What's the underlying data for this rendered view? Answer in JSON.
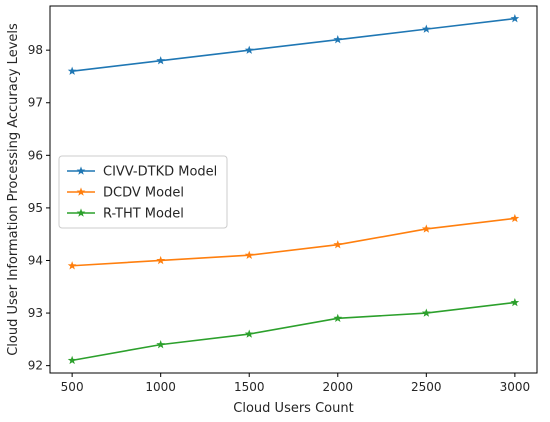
{
  "chart_data": {
    "type": "line",
    "xlabel": "Cloud Users Count",
    "ylabel": "Cloud User Information Processing Accuracy Levels",
    "x": [
      500,
      1000,
      1500,
      2000,
      2500,
      3000
    ],
    "xticks": [
      "500",
      "1000",
      "1500",
      "2000",
      "2500",
      "3000"
    ],
    "yticks": [
      "92",
      "93",
      "94",
      "95",
      "96",
      "97",
      "98"
    ],
    "xlim": [
      375,
      3125
    ],
    "ylim": [
      91.86,
      98.84
    ],
    "grid": false,
    "legend_position": "center-left",
    "marker": "star",
    "series": [
      {
        "name": "CIVV-DTKD Model",
        "color": "#1f77b4",
        "values": [
          97.6,
          97.8,
          98.0,
          98.2,
          98.4,
          98.6
        ]
      },
      {
        "name": "DCDV Model",
        "color": "#ff7f0e",
        "values": [
          93.9,
          94.0,
          94.1,
          94.3,
          94.6,
          94.8
        ]
      },
      {
        "name": "R-THT Model",
        "color": "#2ca02c",
        "values": [
          92.1,
          92.4,
          92.6,
          92.9,
          93.0,
          93.2
        ]
      }
    ]
  }
}
